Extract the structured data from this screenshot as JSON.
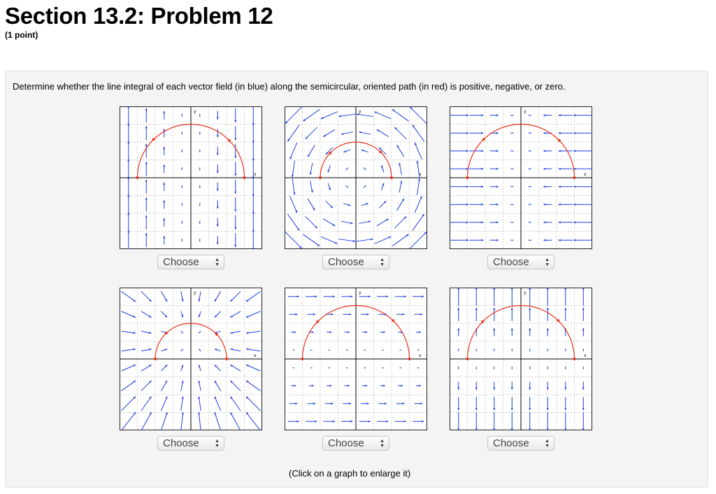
{
  "header": {
    "title": "Section 13.2: Problem 12",
    "points": "(1 point)"
  },
  "problem": {
    "prompt": "Determine whether the line integral of each vector field (in blue) along the semicircular, oriented path (in red) is positive, negative, or zero.",
    "hint": "(Click on a graph to enlarge it)"
  },
  "colors": {
    "field": "#1d3fe0",
    "path": "#e8321c",
    "grid": "#bdbdbd"
  },
  "axis_labels": {
    "x": "x",
    "y": "y"
  },
  "graphs": [
    {
      "field": "vertical-upward-left-downward-right",
      "path_direction": "counterclockwise",
      "answer_select": "Choose"
    },
    {
      "field": "circular-counterclockwise",
      "path_direction": "clockwise",
      "answer_select": "Choose"
    },
    {
      "field": "horizontal-inward",
      "path_direction": "counterclockwise",
      "answer_select": "Choose"
    },
    {
      "field": "radial-inward-toward-upper-point",
      "path_direction": "counterclockwise",
      "answer_select": "Choose"
    },
    {
      "field": "horizontal-rightward",
      "path_direction": "clockwise",
      "answer_select": "Choose"
    },
    {
      "field": "vertical-upward-top-downward-bottom",
      "path_direction": "clockwise",
      "answer_select": "Choose"
    }
  ],
  "select_options": [
    "Choose"
  ]
}
